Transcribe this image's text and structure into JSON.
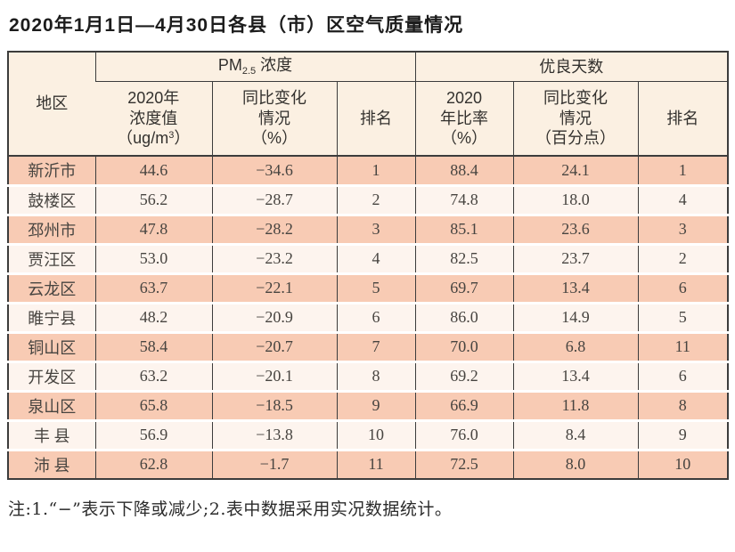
{
  "title": "2020年1月1日—4月30日各县（市）区空气质量情况",
  "note": "注:1.“−”表示下降或减少;2.表中数据采用实况数据统计。",
  "colors": {
    "row_pink": "#f8cbb4",
    "row_light": "#fdf4ee",
    "header_cream": "#fbf0e2",
    "border_dark": "#3c3c3c"
  },
  "table": {
    "header": {
      "region": "地区",
      "pm_group": {
        "pre": "PM",
        "sub": "2.5",
        "post": " 浓度"
      },
      "good_group": "优良天数",
      "conc": {
        "line1": "2020年",
        "line2": "浓度值",
        "unit_pre": "（ug/m",
        "unit_sup": "3",
        "unit_post": "）"
      },
      "pm_change": {
        "line1": "同比变化",
        "line2": "情况",
        "line3": "（%）"
      },
      "pm_rank": "排名",
      "ratio": {
        "line1": "2020",
        "line2": "年比率",
        "line3": "（%）"
      },
      "days_change": {
        "line1": "同比变化",
        "line2": "情况",
        "line3": "（百分点）"
      },
      "days_rank": "排名"
    },
    "rows": [
      {
        "region": "新沂市",
        "pm_conc": "44.6",
        "pm_change": "−34.6",
        "pm_rank": "1",
        "days_ratio": "88.4",
        "days_change": "24.1",
        "days_rank": "1"
      },
      {
        "region": "鼓楼区",
        "pm_conc": "56.2",
        "pm_change": "−28.7",
        "pm_rank": "2",
        "days_ratio": "74.8",
        "days_change": "18.0",
        "days_rank": "4"
      },
      {
        "region": "邳州市",
        "pm_conc": "47.8",
        "pm_change": "−28.2",
        "pm_rank": "3",
        "days_ratio": "85.1",
        "days_change": "23.6",
        "days_rank": "3"
      },
      {
        "region": "贾汪区",
        "pm_conc": "53.0",
        "pm_change": "−23.2",
        "pm_rank": "4",
        "days_ratio": "82.5",
        "days_change": "23.7",
        "days_rank": "2"
      },
      {
        "region": "云龙区",
        "pm_conc": "63.7",
        "pm_change": "−22.1",
        "pm_rank": "5",
        "days_ratio": "69.7",
        "days_change": "13.4",
        "days_rank": "6"
      },
      {
        "region": "睢宁县",
        "pm_conc": "48.2",
        "pm_change": "−20.9",
        "pm_rank": "6",
        "days_ratio": "86.0",
        "days_change": "14.9",
        "days_rank": "5"
      },
      {
        "region": "铜山区",
        "pm_conc": "58.4",
        "pm_change": "−20.7",
        "pm_rank": "7",
        "days_ratio": "70.0",
        "days_change": "6.8",
        "days_rank": "11"
      },
      {
        "region": "开发区",
        "pm_conc": "63.2",
        "pm_change": "−20.1",
        "pm_rank": "8",
        "days_ratio": "69.2",
        "days_change": "13.4",
        "days_rank": "6"
      },
      {
        "region": "泉山区",
        "pm_conc": "65.8",
        "pm_change": "−18.5",
        "pm_rank": "9",
        "days_ratio": "66.9",
        "days_change": "11.8",
        "days_rank": "8"
      },
      {
        "region": "丰 县",
        "pm_conc": "56.9",
        "pm_change": "−13.8",
        "pm_rank": "10",
        "days_ratio": "76.0",
        "days_change": "8.4",
        "days_rank": "9"
      },
      {
        "region": "沛 县",
        "pm_conc": "62.8",
        "pm_change": "−1.7",
        "pm_rank": "11",
        "days_ratio": "72.5",
        "days_change": "8.0",
        "days_rank": "10"
      }
    ]
  }
}
